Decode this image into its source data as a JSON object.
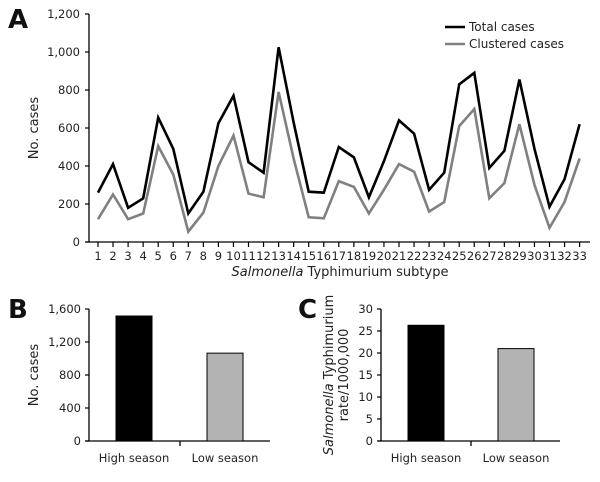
{
  "chart_data": [
    {
      "panel": "A",
      "type": "line",
      "title": "",
      "xlabel_italic": "Salmonella",
      "xlabel_rest": " Typhimurium subtype",
      "ylabel": "No. cases",
      "ylim": [
        0,
        1200
      ],
      "yticks": [
        0,
        200,
        400,
        600,
        800,
        1000,
        1200
      ],
      "ytick_labels": [
        "0",
        "200",
        "400",
        "600",
        "800",
        "1,000",
        "1,200"
      ],
      "x": [
        1,
        2,
        3,
        4,
        5,
        6,
        7,
        8,
        9,
        10,
        11,
        12,
        13,
        14,
        15,
        16,
        17,
        18,
        19,
        20,
        21,
        22,
        23,
        24,
        25,
        26,
        27,
        28,
        29,
        30,
        31,
        32,
        33
      ],
      "legend_position": "top-right",
      "series": [
        {
          "name": "Total cases",
          "color": "#000000",
          "values": [
            260,
            410,
            180,
            230,
            655,
            490,
            150,
            265,
            625,
            770,
            420,
            365,
            1025,
            630,
            265,
            260,
            500,
            445,
            235,
            425,
            640,
            570,
            275,
            365,
            830,
            890,
            390,
            480,
            855,
            490,
            185,
            330,
            620
          ]
        },
        {
          "name": "Clustered cases",
          "color": "#808080",
          "values": [
            120,
            250,
            120,
            150,
            505,
            355,
            55,
            155,
            400,
            560,
            255,
            235,
            790,
            440,
            130,
            125,
            320,
            290,
            150,
            275,
            410,
            370,
            160,
            210,
            610,
            700,
            230,
            310,
            620,
            300,
            75,
            210,
            440
          ]
        }
      ]
    },
    {
      "panel": "B",
      "type": "bar",
      "categories": [
        "High season",
        "Low season"
      ],
      "values": [
        1515,
        1065
      ],
      "colors": [
        "#000000",
        "#b3b3b3"
      ],
      "ylabel": "No. cases",
      "ylim": [
        0,
        1600
      ],
      "yticks": [
        0,
        400,
        800,
        1200,
        1600
      ],
      "ytick_labels": [
        "0",
        "400",
        "800",
        "1,200",
        "1,600"
      ]
    },
    {
      "panel": "C",
      "type": "bar",
      "categories": [
        "High season",
        "Low season"
      ],
      "values": [
        26.3,
        21
      ],
      "colors": [
        "#000000",
        "#b3b3b3"
      ],
      "ylabel_italic": "Salmonella",
      "ylabel_rest": " Typhimurium",
      "ylabel_line2": "rate/1000,000",
      "ylim": [
        0,
        30
      ],
      "yticks": [
        0,
        5,
        10,
        15,
        20,
        25,
        30
      ],
      "ytick_labels": [
        "0",
        "5",
        "10",
        "15",
        "20",
        "25",
        "30"
      ]
    }
  ]
}
